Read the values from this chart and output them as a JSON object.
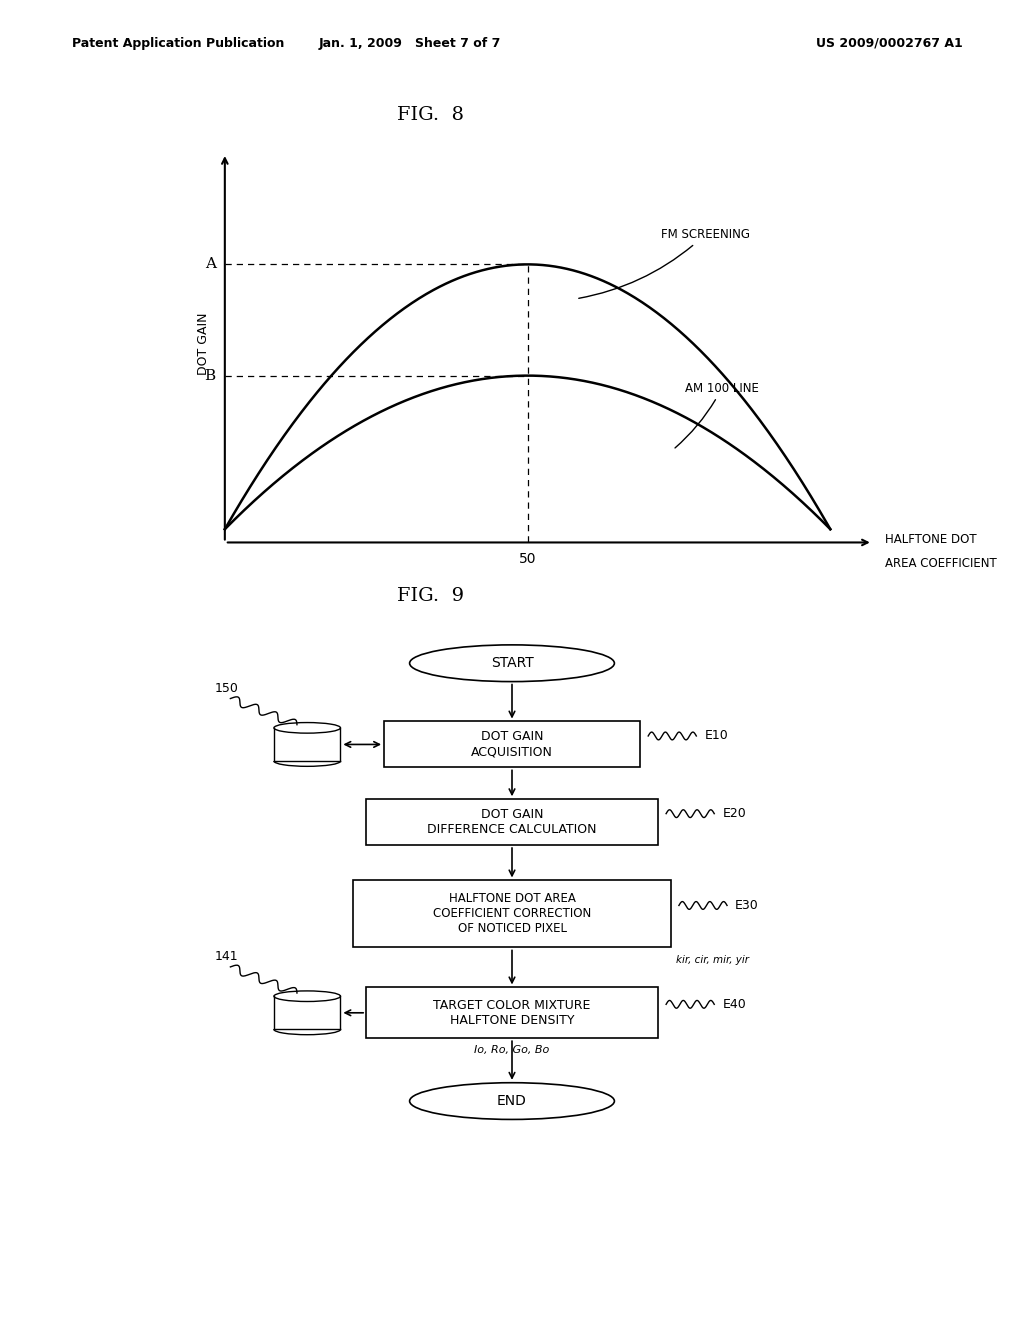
{
  "header_left": "Patent Application Publication",
  "header_mid": "Jan. 1, 2009   Sheet 7 of 7",
  "header_right": "US 2009/0002767 A1",
  "fig8_title": "FIG.  8",
  "fig9_title": "FIG.  9",
  "fig8_ylabel": "DOT GAIN",
  "fig8_xlabel1": "HALFTONE DOT",
  "fig8_xlabel2": "AREA COEFFICIENT",
  "fig8_xtick": "50",
  "fig8_label_A": "A",
  "fig8_label_B": "B",
  "fig8_curve1_label": "FM SCREENING",
  "fig8_curve2_label": "AM 100 LINE",
  "flowchart_start": "START",
  "flowchart_end": "END",
  "flowchart_box1": "DOT GAIN\nACQUISITION",
  "flowchart_box2": "DOT GAIN\nDIFFERENCE CALCULATION",
  "flowchart_box3": "HALFTONE DOT AREA\nCOEFFICIENT CORRECTION\nOF NOTICED PIXEL",
  "flowchart_box4": "TARGET COLOR MIXTURE\nHALFTONE DENSITY",
  "flowchart_label_150": "150",
  "flowchart_label_141": "141",
  "flowchart_e10": "E10",
  "flowchart_e20": "E20",
  "flowchart_e30": "E30",
  "flowchart_e40": "E40",
  "flowchart_kir": "kir, cir, mir, yir",
  "flowchart_lo": "Io, Ro, Go, Bo",
  "bg_color": "#ffffff",
  "line_color": "#000000"
}
